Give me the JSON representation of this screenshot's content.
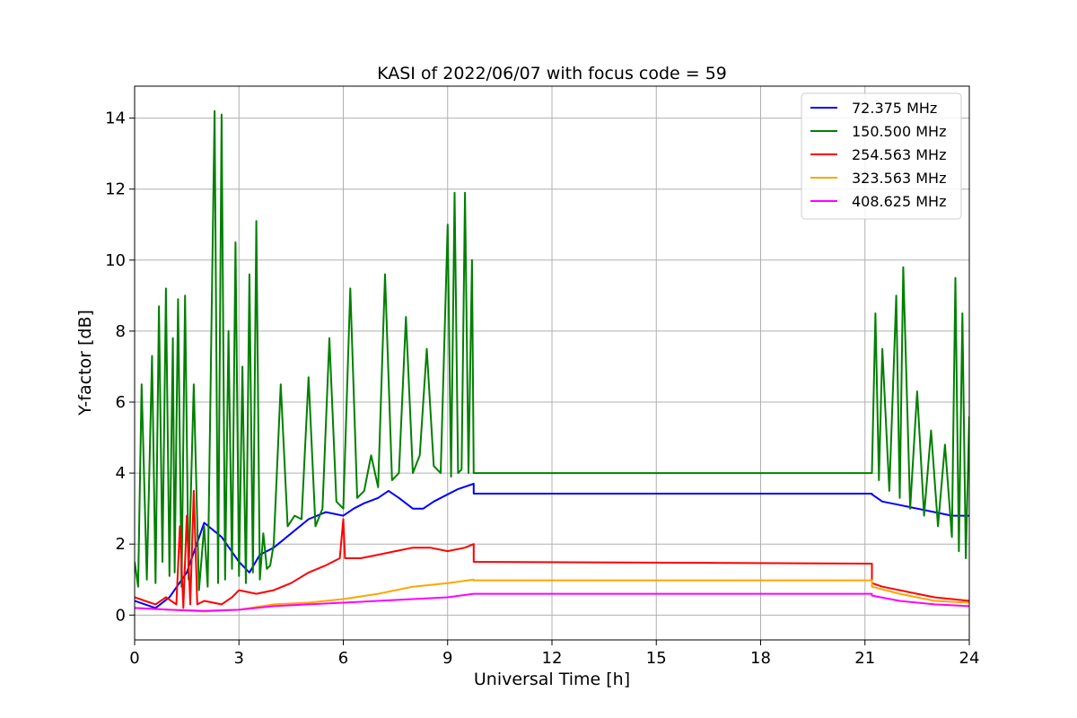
{
  "chart_data": {
    "type": "line",
    "title": "KASI of 2022/06/07 with focus code = 59",
    "xlabel": "Universal Time [h]",
    "ylabel": "Y-factor [dB]",
    "xlim": [
      0,
      24
    ],
    "ylim": [
      -0.7,
      14.9
    ],
    "xticks": [
      0,
      3,
      6,
      9,
      12,
      15,
      18,
      21,
      24
    ],
    "yticks": [
      0,
      2,
      4,
      6,
      8,
      10,
      12,
      14
    ],
    "grid": true,
    "legend_position": "top-right",
    "series": [
      {
        "name": "72.375 MHz",
        "color": "#0000ff",
        "x": [
          0,
          0.3,
          0.6,
          1.0,
          1.5,
          2.0,
          2.5,
          3.0,
          3.3,
          3.6,
          4.0,
          4.5,
          5.0,
          5.5,
          6.0,
          6.3,
          6.6,
          7.0,
          7.3,
          7.6,
          8.0,
          8.3,
          8.6,
          9.0,
          9.3,
          9.75,
          9.75,
          21.2,
          21.2,
          21.5,
          22.0,
          22.5,
          23.0,
          23.5,
          24.0
        ],
        "y": [
          0.4,
          0.3,
          0.2,
          0.5,
          1.2,
          2.6,
          2.2,
          1.5,
          1.2,
          1.7,
          1.9,
          2.3,
          2.7,
          2.9,
          2.8,
          3.0,
          3.15,
          3.3,
          3.5,
          3.3,
          3.0,
          3.0,
          3.2,
          3.4,
          3.55,
          3.7,
          3.42,
          3.42,
          3.4,
          3.2,
          3.1,
          3.0,
          2.9,
          2.8,
          2.8
        ]
      },
      {
        "name": "150.500 MHz",
        "color": "#008000",
        "x": [
          0,
          0.1,
          0.2,
          0.35,
          0.5,
          0.6,
          0.7,
          0.8,
          0.9,
          1.0,
          1.1,
          1.15,
          1.25,
          1.35,
          1.45,
          1.55,
          1.7,
          1.85,
          2.0,
          2.1,
          2.3,
          2.4,
          2.5,
          2.6,
          2.7,
          2.8,
          2.9,
          3.0,
          3.1,
          3.2,
          3.3,
          3.4,
          3.5,
          3.6,
          3.7,
          3.8,
          3.9,
          4.0,
          4.2,
          4.4,
          4.6,
          4.8,
          5.0,
          5.2,
          5.4,
          5.6,
          5.8,
          6.0,
          6.2,
          6.4,
          6.6,
          6.8,
          7.0,
          7.2,
          7.4,
          7.6,
          7.8,
          8.0,
          8.2,
          8.4,
          8.6,
          8.8,
          9.0,
          9.1,
          9.2,
          9.3,
          9.4,
          9.5,
          9.6,
          9.7,
          9.75,
          9.75,
          21.2,
          21.2,
          21.3,
          21.4,
          21.5,
          21.7,
          21.9,
          22.0,
          22.1,
          22.3,
          22.5,
          22.7,
          22.9,
          23.1,
          23.3,
          23.5,
          23.6,
          23.7,
          23.8,
          23.9,
          24.0
        ],
        "y": [
          1.5,
          0.8,
          6.5,
          1.0,
          7.3,
          0.9,
          8.7,
          1.5,
          9.2,
          1.1,
          7.8,
          1.2,
          8.9,
          0.8,
          9.0,
          1.0,
          6.5,
          0.7,
          2.5,
          0.8,
          14.2,
          0.9,
          14.1,
          1.0,
          8.0,
          1.3,
          10.5,
          1.1,
          7.0,
          0.9,
          9.6,
          1.2,
          11.1,
          1.0,
          2.3,
          1.3,
          1.4,
          2.0,
          6.5,
          2.5,
          2.8,
          2.7,
          6.7,
          2.5,
          3.0,
          7.8,
          3.2,
          3.0,
          9.2,
          3.3,
          3.5,
          4.5,
          3.6,
          9.6,
          3.8,
          4.0,
          8.4,
          4.0,
          4.5,
          7.5,
          4.2,
          4.0,
          11.0,
          3.9,
          11.9,
          4.0,
          4.1,
          11.9,
          4.0,
          10.0,
          4.0,
          4.0,
          4.0,
          4.0,
          8.5,
          3.8,
          7.5,
          3.5,
          9.0,
          3.3,
          9.8,
          3.0,
          6.3,
          2.8,
          5.2,
          2.5,
          4.8,
          2.2,
          9.5,
          1.8,
          8.5,
          1.6,
          5.6
        ]
      },
      {
        "name": "254.563 MHz",
        "color": "#ff0000",
        "x": [
          0,
          0.3,
          0.6,
          0.9,
          1.2,
          1.3,
          1.4,
          1.5,
          1.6,
          1.7,
          1.8,
          2.0,
          2.5,
          2.8,
          3.0,
          3.5,
          4.0,
          4.5,
          5.0,
          5.5,
          5.9,
          6.0,
          6.05,
          6.5,
          7.0,
          7.5,
          8.0,
          8.5,
          9.0,
          9.5,
          9.75,
          9.75,
          21.2,
          21.2,
          21.5,
          22.0,
          22.5,
          23.0,
          23.5,
          24.0
        ],
        "y": [
          0.5,
          0.4,
          0.3,
          0.5,
          0.3,
          2.5,
          0.2,
          2.8,
          0.3,
          3.5,
          0.3,
          0.4,
          0.3,
          0.5,
          0.7,
          0.6,
          0.7,
          0.9,
          1.2,
          1.4,
          1.6,
          2.7,
          1.6,
          1.6,
          1.7,
          1.8,
          1.9,
          1.9,
          1.8,
          1.9,
          2.0,
          1.5,
          1.45,
          0.9,
          0.8,
          0.7,
          0.6,
          0.5,
          0.45,
          0.4
        ]
      },
      {
        "name": "323.563 MHz",
        "color": "#ffa500",
        "x": [
          0,
          1.0,
          2.0,
          3.0,
          4.0,
          5.0,
          6.0,
          7.0,
          8.0,
          9.0,
          9.75,
          9.75,
          21.2,
          21.2,
          22.0,
          23.0,
          24.0
        ],
        "y": [
          0.2,
          0.15,
          0.1,
          0.15,
          0.3,
          0.35,
          0.45,
          0.6,
          0.8,
          0.9,
          1.0,
          0.98,
          0.98,
          0.8,
          0.6,
          0.4,
          0.35
        ]
      },
      {
        "name": "408.625 MHz",
        "color": "#ff00ff",
        "x": [
          0,
          1.0,
          2.0,
          3.0,
          4.0,
          5.0,
          6.0,
          7.0,
          8.0,
          9.0,
          9.75,
          9.75,
          21.2,
          21.2,
          22.0,
          23.0,
          24.0
        ],
        "y": [
          0.2,
          0.15,
          0.12,
          0.15,
          0.25,
          0.3,
          0.35,
          0.4,
          0.45,
          0.5,
          0.6,
          0.6,
          0.6,
          0.55,
          0.4,
          0.3,
          0.25
        ]
      }
    ]
  }
}
